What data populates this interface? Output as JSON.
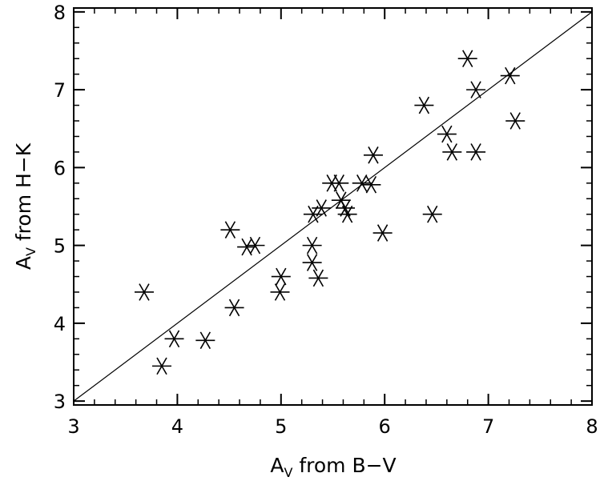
{
  "chart_data": {
    "type": "scatter",
    "title": "",
    "xlabel": {
      "main": "A",
      "sub": "V",
      "rest": " from B−V"
    },
    "ylabel": {
      "main": "A",
      "sub": "V",
      "rest": " from H−K"
    },
    "xlim": [
      3,
      8
    ],
    "ylim": [
      2.95,
      8.05
    ],
    "x_ticks": [
      "3",
      "4",
      "5",
      "6",
      "7",
      "8"
    ],
    "y_ticks": [
      "3",
      "4",
      "5",
      "6",
      "7",
      "8"
    ],
    "x_tick_values": [
      3,
      4,
      5,
      6,
      7,
      8
    ],
    "y_tick_values": [
      3,
      4,
      5,
      6,
      7,
      8
    ],
    "grid": false,
    "legend": "none",
    "marker": "asterisk",
    "reference_line": {
      "type": "one-to-one",
      "points": [
        [
          3,
          3
        ],
        [
          8,
          8
        ]
      ]
    },
    "colors": {
      "marker": "#000000",
      "line": "#000000",
      "axes": "#000000"
    },
    "points": [
      {
        "x": 3.68,
        "y": 4.4
      },
      {
        "x": 3.85,
        "y": 3.45
      },
      {
        "x": 3.97,
        "y": 3.8
      },
      {
        "x": 4.27,
        "y": 3.78
      },
      {
        "x": 4.51,
        "y": 5.2
      },
      {
        "x": 4.55,
        "y": 4.2
      },
      {
        "x": 4.67,
        "y": 4.98
      },
      {
        "x": 4.75,
        "y": 5.0
      },
      {
        "x": 4.99,
        "y": 4.4
      },
      {
        "x": 5.0,
        "y": 4.6
      },
      {
        "x": 5.3,
        "y": 4.78
      },
      {
        "x": 5.3,
        "y": 5.0
      },
      {
        "x": 5.31,
        "y": 5.4
      },
      {
        "x": 5.36,
        "y": 4.58
      },
      {
        "x": 5.39,
        "y": 5.48
      },
      {
        "x": 5.49,
        "y": 5.8
      },
      {
        "x": 5.56,
        "y": 5.8
      },
      {
        "x": 5.58,
        "y": 5.58
      },
      {
        "x": 5.62,
        "y": 5.48
      },
      {
        "x": 5.64,
        "y": 5.4
      },
      {
        "x": 5.78,
        "y": 5.8
      },
      {
        "x": 5.87,
        "y": 5.78
      },
      {
        "x": 5.89,
        "y": 6.16
      },
      {
        "x": 5.98,
        "y": 5.16
      },
      {
        "x": 6.38,
        "y": 6.8
      },
      {
        "x": 6.46,
        "y": 5.4
      },
      {
        "x": 6.6,
        "y": 6.43
      },
      {
        "x": 6.65,
        "y": 6.2
      },
      {
        "x": 6.8,
        "y": 7.4
      },
      {
        "x": 6.88,
        "y": 7.0
      },
      {
        "x": 6.88,
        "y": 6.2
      },
      {
        "x": 7.21,
        "y": 7.18
      },
      {
        "x": 7.26,
        "y": 6.6
      }
    ]
  }
}
